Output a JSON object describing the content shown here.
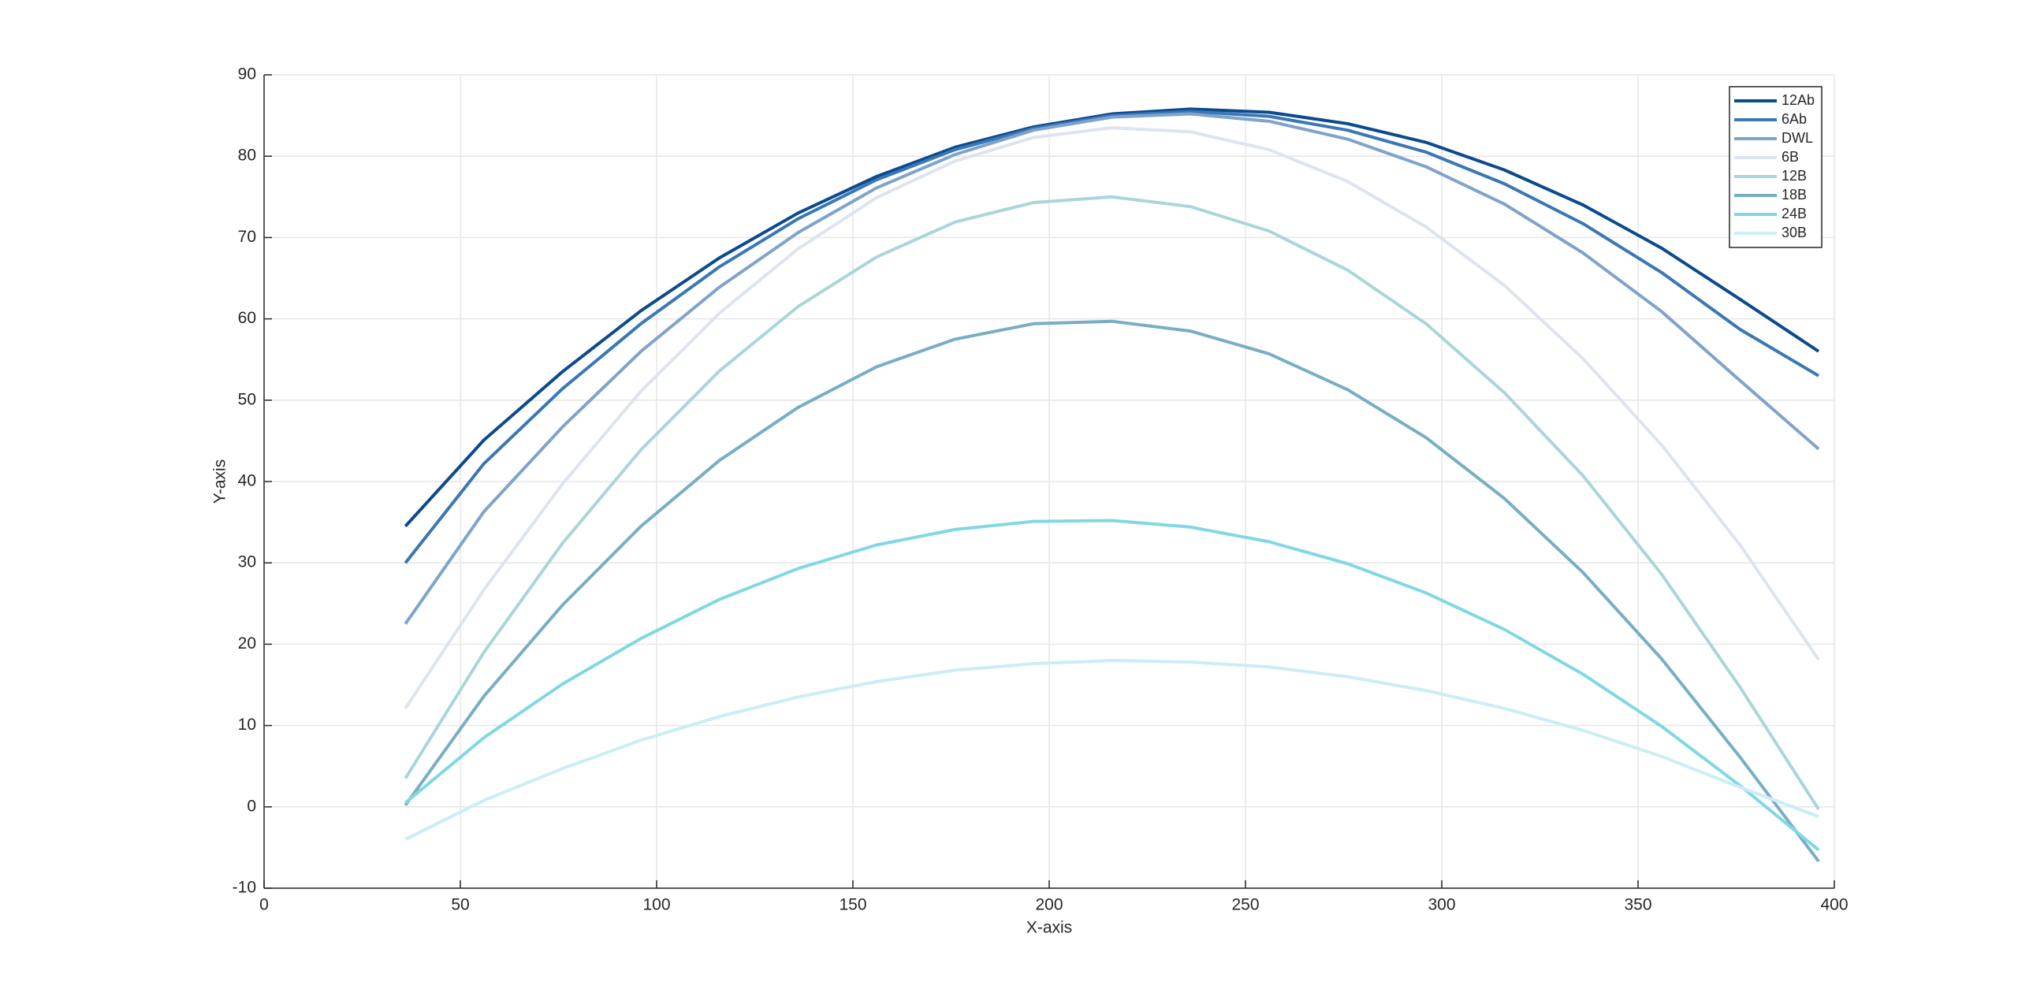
{
  "chart_data": {
    "type": "line",
    "xlabel": "X-axis",
    "ylabel": "Y-axis",
    "x": [
      36,
      56,
      76,
      96,
      116,
      136,
      156,
      176,
      196,
      216,
      236,
      256,
      276,
      296,
      316,
      336,
      356,
      376,
      396
    ],
    "series": [
      {
        "name": "12Ab",
        "color": "#0b4a8c",
        "values": [
          34.5,
          45.1,
          53.5,
          61.0,
          67.5,
          73.0,
          77.5,
          81.1,
          83.6,
          85.2,
          85.8,
          85.4,
          84.0,
          81.7,
          78.3,
          74.0,
          68.7,
          62.4,
          56.0
        ]
      },
      {
        "name": "6Ab",
        "color": "#3a77b5",
        "values": [
          30.0,
          42.2,
          51.4,
          59.4,
          66.4,
          72.3,
          77.1,
          80.8,
          83.4,
          85.0,
          85.5,
          84.9,
          83.2,
          80.5,
          76.6,
          71.7,
          65.7,
          58.7,
          53.0
        ]
      },
      {
        "name": "DWL",
        "color": "#7fa3cb",
        "values": [
          22.5,
          36.3,
          46.7,
          56.0,
          63.9,
          70.6,
          76.1,
          80.2,
          83.2,
          84.8,
          85.2,
          84.3,
          82.1,
          78.7,
          74.1,
          68.1,
          60.9,
          52.4,
          44.0
        ]
      },
      {
        "name": "6B",
        "color": "#dde4ee",
        "values": [
          12.1,
          26.7,
          39.7,
          51.1,
          60.7,
          68.6,
          74.9,
          79.4,
          82.3,
          83.5,
          83.0,
          80.8,
          76.9,
          71.3,
          64.1,
          55.1,
          44.5,
          32.2,
          18.1
        ]
      },
      {
        "name": "12B",
        "color": "#a9d6d8",
        "values": [
          3.5,
          19.0,
          32.4,
          43.9,
          53.6,
          61.5,
          67.6,
          71.9,
          74.3,
          75.0,
          73.8,
          70.8,
          66.0,
          59.4,
          50.9,
          40.7,
          28.6,
          14.7,
          -0.3
        ]
      },
      {
        "name": "18B",
        "color": "#78aec4",
        "values": [
          0.2,
          13.6,
          24.8,
          34.5,
          42.6,
          49.1,
          54.1,
          57.5,
          59.4,
          59.7,
          58.5,
          55.7,
          51.3,
          45.4,
          37.9,
          28.8,
          18.2,
          6.1,
          -6.7
        ]
      },
      {
        "name": "24B",
        "color": "#7fd8e2",
        "values": [
          0.5,
          8.5,
          15.1,
          20.7,
          25.5,
          29.3,
          32.2,
          34.1,
          35.1,
          35.2,
          34.4,
          32.6,
          29.9,
          26.3,
          21.8,
          16.3,
          9.9,
          2.6,
          -5.3
        ]
      },
      {
        "name": "30B",
        "color": "#c9eef4",
        "values": [
          -4.0,
          0.8,
          4.7,
          8.2,
          11.1,
          13.5,
          15.4,
          16.8,
          17.6,
          18.0,
          17.8,
          17.2,
          16.0,
          14.3,
          12.1,
          9.4,
          6.2,
          2.4,
          -1.2
        ]
      }
    ],
    "xlim": [
      0,
      400
    ],
    "xticks": [
      0,
      50,
      100,
      150,
      200,
      250,
      300,
      350,
      400
    ],
    "ylim": [
      -10,
      90
    ],
    "yticks": [
      -10,
      0,
      10,
      20,
      30,
      40,
      50,
      60,
      70,
      80,
      90
    ],
    "grid": true,
    "legend": "upper right"
  }
}
